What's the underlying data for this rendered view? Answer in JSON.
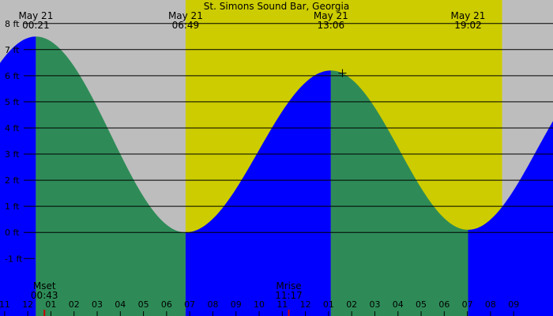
{
  "chart_data": {
    "type": "area",
    "title": "St. Simons Sound Bar, Georgia",
    "y_unit": "ft",
    "y_ticks": [
      {
        "value": 8,
        "label": "8 ft"
      },
      {
        "value": 7,
        "label": "7 ft"
      },
      {
        "value": 6,
        "label": "6 ft"
      },
      {
        "value": 5,
        "label": "5 ft"
      },
      {
        "value": 4,
        "label": "4 ft"
      },
      {
        "value": 3,
        "label": "3 ft"
      },
      {
        "value": 2,
        "label": "2 ft"
      },
      {
        "value": 1,
        "label": "1 ft"
      },
      {
        "value": 0,
        "label": "0 ft"
      },
      {
        "value": -1,
        "label": "-1 ft"
      }
    ],
    "ylim": [
      -3.2,
      8.9
    ],
    "xlim_hours": [
      -1.2,
      22.7
    ],
    "x_ticks": [
      "11",
      "12",
      "01",
      "02",
      "03",
      "04",
      "05",
      "06",
      "07",
      "08",
      "09",
      "10",
      "11",
      "12",
      "01",
      "02",
      "03",
      "04",
      "05",
      "06",
      "07",
      "08",
      "09"
    ],
    "x_tick_hours": [
      -1,
      0,
      1,
      2,
      3,
      4,
      5,
      6,
      7,
      8,
      9,
      10,
      11,
      12,
      13,
      14,
      15,
      16,
      17,
      18,
      19,
      20,
      21
    ],
    "daylight": {
      "start_hour": 6.82,
      "end_hour": 20.5
    },
    "tide_events": [
      {
        "hour": 0.35,
        "height": 7.5,
        "date": "May 21",
        "time": "00:21",
        "type": "high"
      },
      {
        "hour": 6.82,
        "height": 0.0,
        "date": "May 21",
        "time": "06:49",
        "type": "low"
      },
      {
        "hour": 13.1,
        "height": 6.2,
        "date": "May 21",
        "time": "13:06",
        "type": "high"
      },
      {
        "hour": 19.03,
        "height": 0.1,
        "date": "May 21",
        "time": "19:02",
        "type": "low"
      }
    ],
    "moon_events": [
      {
        "name": "Mset",
        "time": "00:43",
        "hour": 0.72
      },
      {
        "name": "Mrise",
        "time": "11:17",
        "hour": 11.28
      }
    ],
    "current_marker": {
      "hour": 13.6,
      "height": 6.1
    },
    "colors": {
      "night": "#bdbdbd",
      "day": "#cccc00",
      "rising": "#0000ff",
      "falling": "#2e8b57",
      "grid": "#000000",
      "moon_tick": "#cc0000"
    }
  }
}
